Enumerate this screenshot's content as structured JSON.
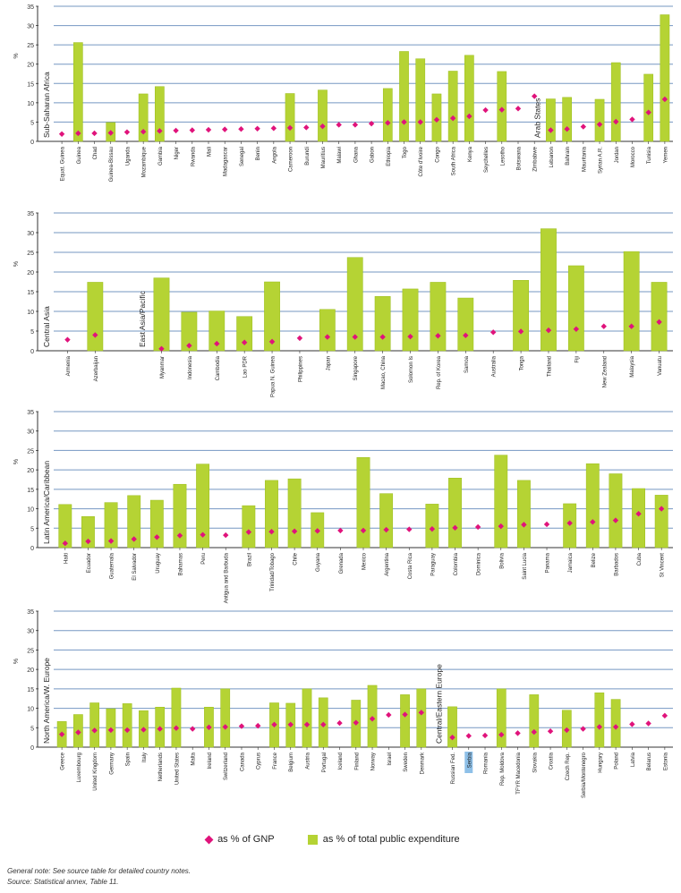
{
  "colors": {
    "bar": "#b5d334",
    "bar_stroke": "#9cbd1e",
    "marker": "#e0137b",
    "grid": "#5e86b8",
    "axis": "#333333",
    "highlight": "#8ec0e8"
  },
  "legend": {
    "gnp_label": "as % of GNP",
    "expenditure_label": "as % of total public expenditure"
  },
  "notes": {
    "general": "General note: See source table for detailed country notes.",
    "source": "Source: Statistical annex, Table 11."
  },
  "chart_data": [
    {
      "type": "bar",
      "ylabel": "%",
      "ylim": [
        0,
        35
      ],
      "yticks": [
        0,
        5,
        10,
        15,
        20,
        25,
        30,
        35
      ],
      "grid": true,
      "groups": [
        {
          "label": "Sub-Saharan Africa",
          "categories": [
            "Equat. Guinea",
            "Guinea",
            "Chad",
            "Guinea-Bissau",
            "Uganda",
            "Mozambique",
            "Gambia",
            "Niger",
            "Rwanda",
            "Mali",
            "Madagascar",
            "Senegal",
            "Benin",
            "Angola",
            "Cameroon",
            "Burundi",
            "Mauritius",
            "Malawi",
            "Ghana",
            "Gabon",
            "Ethiopia",
            "Togo",
            "Côte d'Ivoire",
            "Congo",
            "South Africa",
            "Kenya",
            "Seychelles",
            "Lesotho",
            "Botswana",
            "Zimbabwe"
          ],
          "expenditure": [
            null,
            25.6,
            null,
            4.9,
            null,
            12.3,
            14.2,
            null,
            null,
            null,
            null,
            null,
            null,
            null,
            12.4,
            null,
            13.3,
            null,
            null,
            null,
            13.7,
            23.3,
            21.4,
            12.3,
            18.2,
            22.3,
            null,
            18.1,
            null,
            null
          ],
          "gnp": [
            1.9,
            2.1,
            2.1,
            2.2,
            2.4,
            2.5,
            2.7,
            2.8,
            2.9,
            3.0,
            3.1,
            3.2,
            3.3,
            3.4,
            3.5,
            3.6,
            3.9,
            4.3,
            4.3,
            4.6,
            4.8,
            5.0,
            5.0,
            5.6,
            6.0,
            6.5,
            8.1,
            8.2,
            8.5,
            11.7
          ]
        },
        {
          "label": "Arab States",
          "categories": [
            "Lebanon",
            "Bahrain",
            "Mauritania",
            "Syrian A.R.",
            "Jordan",
            "Morocco",
            "Tunisia",
            "Yemen"
          ],
          "expenditure": [
            11.0,
            11.4,
            null,
            10.9,
            20.4,
            null,
            17.4,
            32.8
          ],
          "gnp": [
            2.9,
            3.2,
            3.8,
            4.4,
            5.1,
            5.7,
            7.5,
            10.9
          ]
        }
      ]
    },
    {
      "type": "bar",
      "ylabel": "%",
      "ylim": [
        0,
        35
      ],
      "yticks": [
        0,
        5,
        10,
        15,
        20,
        25,
        30,
        35
      ],
      "grid": true,
      "groups": [
        {
          "label": "Central Asia",
          "categories": [
            "Armenia",
            "Azerbaijan"
          ],
          "expenditure": [
            null,
            17.4
          ],
          "gnp": [
            2.8,
            4.0
          ]
        },
        {
          "label": "East Asia/Pacific",
          "categories": [
            "Myanmar",
            "Indonesia",
            "Cambodia",
            "Lao PDR",
            "Papua N. Guinea",
            "Philippines",
            "Japan",
            "Singapore",
            "Macao, China",
            "Solomon Is",
            "Rep. of Korea",
            "Samoa",
            "Australia",
            "Tonga",
            "Thailand",
            "Fiji",
            "New Zealand",
            "Malaysia",
            "Vanuatu"
          ],
          "expenditure": [
            18.5,
            9.8,
            10.1,
            8.7,
            17.5,
            null,
            10.5,
            23.7,
            13.8,
            15.7,
            17.4,
            13.4,
            null,
            17.9,
            31.0,
            21.6,
            null,
            25.2,
            17.4
          ],
          "gnp": [
            0.5,
            1.3,
            1.8,
            2.1,
            2.3,
            3.2,
            3.5,
            3.5,
            3.5,
            3.6,
            3.8,
            3.9,
            4.7,
            4.9,
            5.2,
            5.5,
            6.2,
            6.2,
            7.3
          ]
        }
      ]
    },
    {
      "type": "bar",
      "ylabel": "%",
      "ylim": [
        0,
        35
      ],
      "yticks": [
        0,
        5,
        10,
        15,
        20,
        25,
        30,
        35
      ],
      "grid": true,
      "groups": [
        {
          "label": "Latin America/Caribbean",
          "categories": [
            "Haiti",
            "Ecuador",
            "Guatemala",
            "El Salvador",
            "Uruguay",
            "Bahamas",
            "Peru",
            "Antigua and Barbuda",
            "Brazil",
            "Trinidad/Tobago",
            "Chile",
            "Guyana",
            "Grenada",
            "Mexico",
            "Argentina",
            "Costa Rica",
            "Paraguay",
            "Colombia",
            "Dominica",
            "Bolivia",
            "Saint Lucia",
            "Panama",
            "Jamaica",
            "Belize",
            "Barbados",
            "Cuba",
            "St Vincent"
          ],
          "expenditure": [
            11.1,
            8.0,
            11.6,
            13.4,
            12.2,
            16.3,
            21.5,
            null,
            10.8,
            17.3,
            17.7,
            9.0,
            null,
            23.2,
            13.9,
            null,
            11.2,
            17.9,
            null,
            23.8,
            17.3,
            null,
            11.3,
            21.6,
            19.0,
            15.2,
            13.5
          ],
          "gnp": [
            1.1,
            1.6,
            1.7,
            2.2,
            2.7,
            3.1,
            3.3,
            3.2,
            4.0,
            4.1,
            4.2,
            4.3,
            4.4,
            4.4,
            4.6,
            4.7,
            4.8,
            5.1,
            5.3,
            5.5,
            5.9,
            6.0,
            6.3,
            6.6,
            7.0,
            8.7,
            10.0
          ]
        }
      ]
    },
    {
      "type": "bar",
      "ylabel": "%",
      "ylim": [
        0,
        35
      ],
      "yticks": [
        0,
        5,
        10,
        15,
        20,
        25,
        30,
        35
      ],
      "grid": true,
      "groups": [
        {
          "label": "North America/W. Europe",
          "categories": [
            "Greece",
            "Luxembourg",
            "United Kingdom",
            "Germany",
            "Spain",
            "Italy",
            "Netherlands",
            "United States",
            "Malta",
            "Ireland",
            "Switzerland",
            "Canada",
            "Cyprus",
            "France",
            "Belgium",
            "Austria",
            "Portugal",
            "Iceland",
            "Finland",
            "Norway",
            "Israel",
            "Sweden",
            "Denmark"
          ],
          "expenditure": [
            6.6,
            8.4,
            11.4,
            9.9,
            11.2,
            9.4,
            10.3,
            15.2,
            null,
            10.3,
            15.0,
            null,
            null,
            11.4,
            11.3,
            15.0,
            12.7,
            null,
            12.1,
            15.9,
            null,
            13.5,
            15.0
          ],
          "gnp": [
            3.3,
            3.8,
            4.3,
            4.4,
            4.4,
            4.5,
            4.7,
            4.9,
            4.7,
            5.1,
            5.2,
            5.4,
            5.5,
            5.8,
            5.8,
            5.8,
            5.8,
            6.2,
            6.3,
            7.3,
            8.3,
            8.4,
            8.9
          ]
        },
        {
          "label": "Central/Eastern Europe",
          "categories": [
            "Russian Fed.",
            "Serbia",
            "Romania",
            "Rep. Moldova",
            "TFYR Macedonia",
            "Slovakia",
            "Croatia",
            "Czech Rep.",
            "Serbia/Montenegro",
            "Hungary",
            "Poland",
            "Latvia",
            "Belarus",
            "Estonia"
          ],
          "expenditure": [
            10.4,
            null,
            null,
            15.0,
            null,
            13.5,
            null,
            9.5,
            null,
            14.0,
            12.3,
            null,
            null,
            null
          ],
          "gnp": [
            2.5,
            2.9,
            3.0,
            3.2,
            3.6,
            3.9,
            4.1,
            4.4,
            4.7,
            5.2,
            5.2,
            5.9,
            6.1,
            8.1
          ],
          "highlighted_category": "Serbia"
        }
      ]
    }
  ]
}
